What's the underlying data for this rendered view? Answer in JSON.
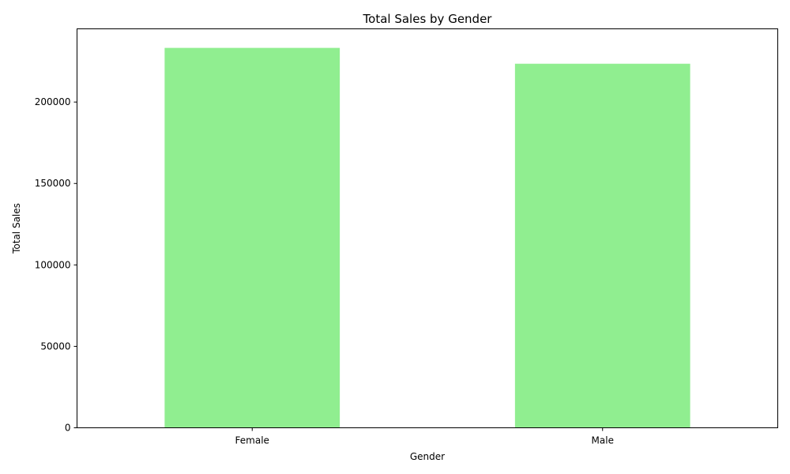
{
  "chart_data": {
    "type": "bar",
    "title": "Total Sales by Gender",
    "xlabel": "Gender",
    "ylabel": "Total Sales",
    "categories": [
      "Female",
      "Male"
    ],
    "values": [
      233252,
      223512
    ],
    "ylim": [
      0,
      244946
    ],
    "yticks": [
      0,
      50000,
      100000,
      150000,
      200000
    ],
    "ytick_labels": [
      "0",
      "50000",
      "100000",
      "150000",
      "200000"
    ],
    "grid": false,
    "legend": "none",
    "bar_color": "#90ee90"
  }
}
